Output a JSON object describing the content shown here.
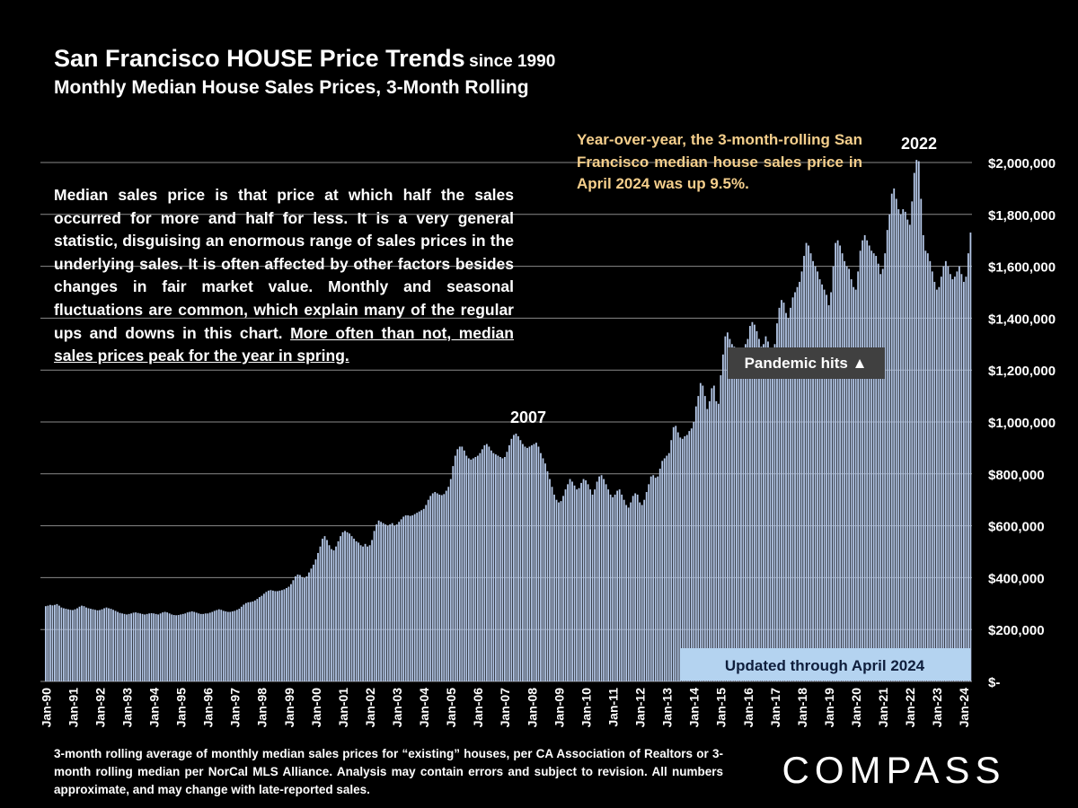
{
  "chart_data": {
    "type": "bar",
    "title": "San Francisco HOUSE Price Trends",
    "title_suffix": "since 1990",
    "subtitle": "Monthly Median House Sales Prices, 3-Month Rolling",
    "annotations": {
      "description": "Median sales price is that price at which half the sales occurred for more and half for less. It is a very general statistic, disguising an enormous range of sales prices in the underlying sales. It is often affected by other factors besides changes in fair market value. Monthly and seasonal fluctuations are common, which explain many of the regular ups and downs in this chart.",
      "description_underlined": "More often than not, median sales prices peak for the year in spring.",
      "yoy_note": "Year-over-year, the 3-month-rolling San Francisco median house sales price in April 2024 was up 9.5%.",
      "peak_2007": "2007",
      "peak_2022": "2022",
      "pandemic": "Pandemic hits ▲",
      "updated": "Updated through April 2024",
      "footnote": "3-month rolling average of monthly median sales prices for “existing” houses, per CA Association of Realtors or 3-month rolling median per NorCal MLS Alliance. Analysis may contain errors and subject to revision. All numbers approximate, and may change with late-reported sales.",
      "logo": "COMPASS"
    },
    "color": "#b4c7e7",
    "grid": true,
    "ylim": [
      0,
      2000000
    ],
    "yticks": [
      {
        "value": 0,
        "label": "$-"
      },
      {
        "value": 200000,
        "label": "$200,000"
      },
      {
        "value": 400000,
        "label": "$400,000"
      },
      {
        "value": 600000,
        "label": "$600,000"
      },
      {
        "value": 800000,
        "label": "$800,000"
      },
      {
        "value": 1000000,
        "label": "$1,000,000"
      },
      {
        "value": 1200000,
        "label": "$1,200,000"
      },
      {
        "value": 1400000,
        "label": "$1,400,000"
      },
      {
        "value": 1600000,
        "label": "$1,600,000"
      },
      {
        "value": 1800000,
        "label": "$1,800,000"
      },
      {
        "value": 2000000,
        "label": "$2,000,000"
      }
    ],
    "categories": [
      "Jan-90",
      null,
      null,
      null,
      null,
      null,
      null,
      null,
      null,
      null,
      null,
      null,
      "Jan-91",
      null,
      null,
      null,
      null,
      null,
      null,
      null,
      null,
      null,
      null,
      null,
      "Jan-92",
      null,
      null,
      null,
      null,
      null,
      null,
      null,
      null,
      null,
      null,
      null,
      "Jan-93",
      null,
      null,
      null,
      null,
      null,
      null,
      null,
      null,
      null,
      null,
      null,
      "Jan-94",
      null,
      null,
      null,
      null,
      null,
      null,
      null,
      null,
      null,
      null,
      null,
      "Jan-95",
      null,
      null,
      null,
      null,
      null,
      null,
      null,
      null,
      null,
      null,
      null,
      "Jan-96",
      null,
      null,
      null,
      null,
      null,
      null,
      null,
      null,
      null,
      null,
      null,
      "Jan-97",
      null,
      null,
      null,
      null,
      null,
      null,
      null,
      null,
      null,
      null,
      null,
      "Jan-98",
      null,
      null,
      null,
      null,
      null,
      null,
      null,
      null,
      null,
      null,
      null,
      "Jan-99",
      null,
      null,
      null,
      null,
      null,
      null,
      null,
      null,
      null,
      null,
      null,
      "Jan-00",
      null,
      null,
      null,
      null,
      null,
      null,
      null,
      null,
      null,
      null,
      null,
      "Jan-01",
      null,
      null,
      null,
      null,
      null,
      null,
      null,
      null,
      null,
      null,
      null,
      "Jan-02",
      null,
      null,
      null,
      null,
      null,
      null,
      null,
      null,
      null,
      null,
      null,
      "Jan-03",
      null,
      null,
      null,
      null,
      null,
      null,
      null,
      null,
      null,
      null,
      null,
      "Jan-04",
      null,
      null,
      null,
      null,
      null,
      null,
      null,
      null,
      null,
      null,
      null,
      "Jan-05",
      null,
      null,
      null,
      null,
      null,
      null,
      null,
      null,
      null,
      null,
      null,
      "Jan-06",
      null,
      null,
      null,
      null,
      null,
      null,
      null,
      null,
      null,
      null,
      null,
      "Jan-07",
      null,
      null,
      null,
      null,
      null,
      null,
      null,
      null,
      null,
      null,
      null,
      "Jan-08",
      null,
      null,
      null,
      null,
      null,
      null,
      null,
      null,
      null,
      null,
      null,
      "Jan-09",
      null,
      null,
      null,
      null,
      null,
      null,
      null,
      null,
      null,
      null,
      null,
      "Jan-10",
      null,
      null,
      null,
      null,
      null,
      null,
      null,
      null,
      null,
      null,
      null,
      "Jan-11",
      null,
      null,
      null,
      null,
      null,
      null,
      null,
      null,
      null,
      null,
      null,
      "Jan-12",
      null,
      null,
      null,
      null,
      null,
      null,
      null,
      null,
      null,
      null,
      null,
      "Jan-13",
      null,
      null,
      null,
      null,
      null,
      null,
      null,
      null,
      null,
      null,
      null,
      "Jan-14",
      null,
      null,
      null,
      null,
      null,
      null,
      null,
      null,
      null,
      null,
      null,
      "Jan-15",
      null,
      null,
      null,
      null,
      null,
      null,
      null,
      null,
      null,
      null,
      null,
      "Jan-16",
      null,
      null,
      null,
      null,
      null,
      null,
      null,
      null,
      null,
      null,
      null,
      "Jan-17",
      null,
      null,
      null,
      null,
      null,
      null,
      null,
      null,
      null,
      null,
      null,
      "Jan-18",
      null,
      null,
      null,
      null,
      null,
      null,
      null,
      null,
      null,
      null,
      null,
      "Jan-19",
      null,
      null,
      null,
      null,
      null,
      null,
      null,
      null,
      null,
      null,
      null,
      "Jan-20",
      null,
      null,
      null,
      null,
      null,
      null,
      null,
      null,
      null,
      null,
      null,
      "Jan-21",
      null,
      null,
      null,
      null,
      null,
      null,
      null,
      null,
      null,
      null,
      null,
      "Jan-22",
      null,
      null,
      null,
      null,
      null,
      null,
      null,
      null,
      null,
      null,
      null,
      "Jan-23",
      null,
      null,
      null,
      null,
      null,
      null,
      null,
      null,
      null,
      null,
      null,
      "Jan-24",
      null,
      null,
      null
    ],
    "values": [
      290000,
      292000,
      295000,
      293000,
      295000,
      298000,
      292000,
      285000,
      282000,
      280000,
      278000,
      276000,
      275000,
      278000,
      282000,
      288000,
      292000,
      290000,
      285000,
      282000,
      280000,
      278000,
      276000,
      274000,
      275000,
      278000,
      282000,
      285000,
      282000,
      280000,
      276000,
      272000,
      268000,
      264000,
      262000,
      260000,
      258000,
      260000,
      262000,
      265000,
      266000,
      264000,
      262000,
      260000,
      258000,
      260000,
      262000,
      263000,
      262000,
      260000,
      258000,
      262000,
      266000,
      268000,
      266000,
      262000,
      258000,
      256000,
      255000,
      256000,
      258000,
      260000,
      262000,
      266000,
      268000,
      270000,
      268000,
      265000,
      262000,
      260000,
      260000,
      262000,
      262000,
      265000,
      268000,
      272000,
      275000,
      278000,
      276000,
      272000,
      270000,
      268000,
      268000,
      270000,
      272000,
      276000,
      280000,
      288000,
      296000,
      302000,
      305000,
      306000,
      308000,
      312000,
      318000,
      325000,
      330000,
      338000,
      345000,
      350000,
      352000,
      350000,
      348000,
      348000,
      350000,
      352000,
      355000,
      360000,
      365000,
      375000,
      390000,
      405000,
      412000,
      410000,
      402000,
      398000,
      405000,
      420000,
      435000,
      450000,
      470000,
      495000,
      520000,
      550000,
      560000,
      545000,
      525000,
      510000,
      505000,
      520000,
      540000,
      560000,
      575000,
      580000,
      575000,
      570000,
      560000,
      550000,
      540000,
      535000,
      525000,
      520000,
      530000,
      520000,
      525000,
      545000,
      580000,
      605000,
      620000,
      615000,
      610000,
      605000,
      600000,
      605000,
      610000,
      600000,
      605000,
      615000,
      625000,
      635000,
      640000,
      640000,
      638000,
      640000,
      645000,
      650000,
      655000,
      660000,
      665000,
      680000,
      700000,
      715000,
      725000,
      730000,
      725000,
      720000,
      718000,
      722000,
      735000,
      750000,
      780000,
      830000,
      870000,
      895000,
      905000,
      905000,
      890000,
      870000,
      860000,
      855000,
      860000,
      865000,
      870000,
      880000,
      895000,
      910000,
      915000,
      905000,
      890000,
      880000,
      875000,
      870000,
      865000,
      860000,
      865000,
      885000,
      910000,
      935000,
      950000,
      955000,
      945000,
      930000,
      915000,
      905000,
      900000,
      905000,
      910000,
      915000,
      920000,
      905000,
      880000,
      860000,
      840000,
      810000,
      780000,
      750000,
      720000,
      700000,
      690000,
      695000,
      715000,
      740000,
      760000,
      780000,
      770000,
      755000,
      740000,
      745000,
      765000,
      780000,
      775000,
      760000,
      740000,
      720000,
      740000,
      770000,
      790000,
      795000,
      780000,
      760000,
      740000,
      720000,
      710000,
      720000,
      735000,
      740000,
      720000,
      700000,
      680000,
      670000,
      690000,
      715000,
      725000,
      720000,
      690000,
      680000,
      700000,
      730000,
      760000,
      790000,
      795000,
      785000,
      790000,
      820000,
      850000,
      860000,
      870000,
      880000,
      930000,
      980000,
      985000,
      960000,
      940000,
      935000,
      945000,
      950000,
      965000,
      975000,
      1000000,
      1060000,
      1100000,
      1150000,
      1140000,
      1100000,
      1050000,
      1080000,
      1130000,
      1140000,
      1080000,
      1070000,
      1180000,
      1260000,
      1330000,
      1345000,
      1320000,
      1300000,
      1290000,
      1280000,
      1260000,
      1250000,
      1270000,
      1300000,
      1320000,
      1370000,
      1385000,
      1375000,
      1350000,
      1320000,
      1290000,
      1300000,
      1330000,
      1310000,
      1280000,
      1250000,
      1300000,
      1380000,
      1440000,
      1470000,
      1460000,
      1420000,
      1400000,
      1440000,
      1480000,
      1500000,
      1520000,
      1540000,
      1580000,
      1640000,
      1690000,
      1680000,
      1650000,
      1620000,
      1600000,
      1580000,
      1550000,
      1530000,
      1510000,
      1490000,
      1450000,
      1500000,
      1600000,
      1690000,
      1700000,
      1680000,
      1650000,
      1620000,
      1600000,
      1590000,
      1550000,
      1520000,
      1510000,
      1580000,
      1660000,
      1700000,
      1720000,
      1700000,
      1680000,
      1660000,
      1650000,
      1640000,
      1610000,
      1570000,
      1590000,
      1650000,
      1740000,
      1800000,
      1880000,
      1900000,
      1860000,
      1820000,
      1800000,
      1820000,
      1810000,
      1780000,
      1760000,
      1850000,
      1960000,
      2010000,
      2005000,
      1860000,
      1720000,
      1660000,
      1650000,
      1620000,
      1580000,
      1540000,
      1510000,
      1520000,
      1560000,
      1600000,
      1620000,
      1600000,
      1570000,
      1550000,
      1560000,
      1580000,
      1600000,
      1570000,
      1540000,
      1560000,
      1650000,
      1730000
    ]
  }
}
